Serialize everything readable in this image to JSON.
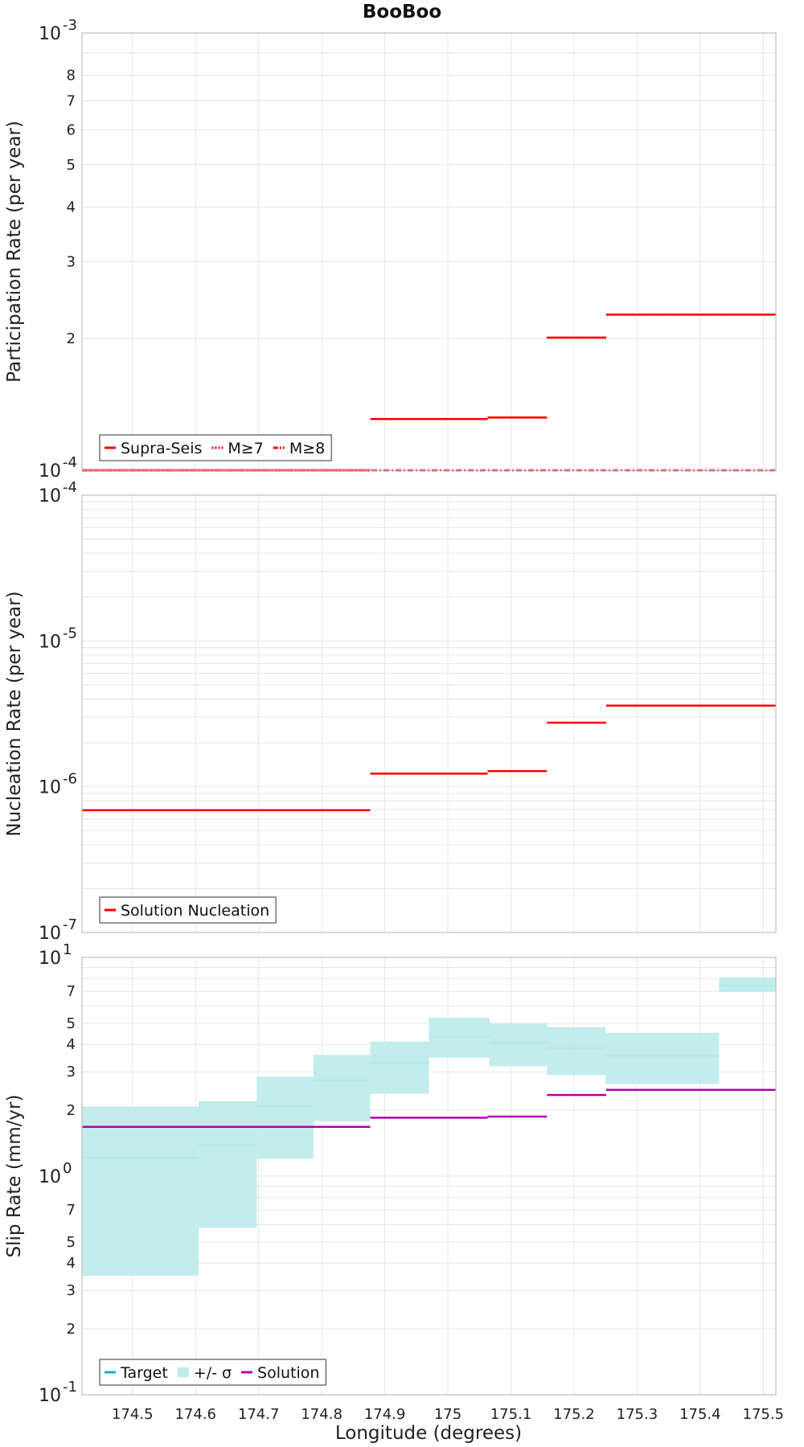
{
  "title": "BooBoo",
  "chart_data": [
    {
      "type": "line",
      "name": "participation",
      "ylabel": "Participation Rate (per year)",
      "xlabel": "",
      "xlim": [
        174.42,
        175.52
      ],
      "ylim": [
        0.0001,
        0.001
      ],
      "yscale": "log",
      "grid": true,
      "legend_position": "bottom-left",
      "series": [
        {
          "name": "Supra-Seis",
          "color": "#ff0000",
          "style": "solid",
          "segments": [
            {
              "x": [
                174.42,
                174.877
              ],
              "y": 0.0001
            },
            {
              "x": [
                174.877,
                175.063
              ],
              "y": 0.000131
            },
            {
              "x": [
                175.063,
                175.157
              ],
              "y": 0.000132
            },
            {
              "x": [
                175.157,
                175.251
              ],
              "y": 0.000201
            },
            {
              "x": [
                175.251,
                175.52
              ],
              "y": 0.000227
            }
          ]
        },
        {
          "name": "M≥7",
          "color": "#ff0000",
          "style": "dotted",
          "segments": [
            {
              "x": [
                174.42,
                174.877
              ],
              "y": 0.0001
            },
            {
              "x": [
                174.877,
                175.063
              ],
              "y": 0.000131
            },
            {
              "x": [
                175.063,
                175.157
              ],
              "y": 0.000132
            },
            {
              "x": [
                175.157,
                175.251
              ],
              "y": 0.000201
            },
            {
              "x": [
                175.251,
                175.52
              ],
              "y": 0.000227
            }
          ]
        },
        {
          "name": "M≥8",
          "color": "#ff0000",
          "style": "dashdot",
          "segments": [
            {
              "x": [
                174.42,
                175.52
              ],
              "y": 0.0001
            }
          ]
        }
      ]
    },
    {
      "type": "line",
      "name": "nucleation",
      "ylabel": "Nucleation Rate (per year)",
      "xlabel": "",
      "xlim": [
        174.42,
        175.52
      ],
      "ylim": [
        1e-07,
        0.0001
      ],
      "yscale": "log",
      "grid": true,
      "legend_position": "bottom-left",
      "series": [
        {
          "name": "Solution Nucleation",
          "color": "#ff0000",
          "style": "solid",
          "segments": [
            {
              "x": [
                174.42,
                174.877
              ],
              "y": 6.9e-07
            },
            {
              "x": [
                174.877,
                175.063
              ],
              "y": 1.23e-06
            },
            {
              "x": [
                175.063,
                175.157
              ],
              "y": 1.28e-06
            },
            {
              "x": [
                175.157,
                175.251
              ],
              "y": 2.75e-06
            },
            {
              "x": [
                175.251,
                175.52
              ],
              "y": 3.6e-06
            }
          ]
        }
      ]
    },
    {
      "type": "line",
      "name": "slip",
      "ylabel": "Slip Rate (mm/yr)",
      "xlabel": "Longitude (degrees)",
      "xlim": [
        174.42,
        175.52
      ],
      "ylim": [
        0.1,
        10
      ],
      "yscale": "log",
      "grid": true,
      "legend_position": "bottom-left",
      "series": [
        {
          "name": "Target",
          "color": "#16b3b0",
          "style": "solid",
          "segments": [
            {
              "x": [
                174.42,
                174.605
              ],
              "y": 1.21
            },
            {
              "x": [
                174.605,
                174.697
              ],
              "y": 1.39
            },
            {
              "x": [
                174.697,
                174.787
              ],
              "y": 2.08
            },
            {
              "x": [
                174.787,
                174.877
              ],
              "y": 2.74
            },
            {
              "x": [
                174.877,
                174.97
              ],
              "y": 3.3
            },
            {
              "x": [
                174.97,
                175.066
              ],
              "y": 4.35
            },
            {
              "x": [
                175.066,
                175.157
              ],
              "y": 4.08
            },
            {
              "x": [
                175.157,
                175.25
              ],
              "y": 3.85
            },
            {
              "x": [
                175.25,
                175.43
              ],
              "y": 3.55
            },
            {
              "x": [
                175.43,
                175.52
              ],
              "y": 7.45
            }
          ]
        },
        {
          "name": "+/- σ",
          "color": "#bfeceb",
          "style": "band",
          "bands": [
            {
              "x": [
                174.42,
                174.605
              ],
              "low": 0.35,
              "high": 2.08
            },
            {
              "x": [
                174.605,
                174.697
              ],
              "low": 0.58,
              "high": 2.2
            },
            {
              "x": [
                174.697,
                174.787
              ],
              "low": 1.2,
              "high": 2.85
            },
            {
              "x": [
                174.787,
                174.877
              ],
              "low": 1.78,
              "high": 3.58
            },
            {
              "x": [
                174.877,
                174.97
              ],
              "low": 2.38,
              "high": 4.12
            },
            {
              "x": [
                174.97,
                175.066
              ],
              "low": 3.48,
              "high": 5.3
            },
            {
              "x": [
                175.066,
                175.157
              ],
              "low": 3.18,
              "high": 4.98
            },
            {
              "x": [
                175.157,
                175.25
              ],
              "low": 2.9,
              "high": 4.8
            },
            {
              "x": [
                175.25,
                175.43
              ],
              "low": 2.64,
              "high": 4.52
            },
            {
              "x": [
                175.43,
                175.52
              ],
              "low": 6.95,
              "high": 8.1
            }
          ]
        },
        {
          "name": "Solution",
          "color": "#b000b0",
          "style": "solid",
          "segments": [
            {
              "x": [
                174.42,
                174.877
              ],
              "y": 1.68
            },
            {
              "x": [
                174.877,
                175.063
              ],
              "y": 1.85
            },
            {
              "x": [
                175.063,
                175.157
              ],
              "y": 1.87
            },
            {
              "x": [
                175.157,
                175.251
              ],
              "y": 2.35
            },
            {
              "x": [
                175.251,
                175.52
              ],
              "y": 2.48
            }
          ]
        }
      ]
    }
  ],
  "x_ticks": [
    "174.5",
    "174.6",
    "174.7",
    "174.8",
    "174.9",
    "175",
    "175.1",
    "175.2",
    "175.3",
    "175.4",
    "175.5"
  ],
  "decade_labels": {
    "participation": [
      {
        "base": "10",
        "exp": "-3"
      },
      {
        "base": "10",
        "exp": "-4"
      }
    ],
    "nucleation": [
      {
        "base": "10",
        "exp": "-4"
      },
      {
        "base": "10",
        "exp": "-5"
      },
      {
        "base": "10",
        "exp": "-6"
      },
      {
        "base": "10",
        "exp": "-7"
      }
    ],
    "slip": [
      {
        "base": "10",
        "exp": "1"
      },
      {
        "base": "10",
        "exp": "0"
      },
      {
        "base": "10",
        "exp": "-1"
      }
    ]
  },
  "minor_tick_labels": {
    "participation": [
      "8",
      "7",
      "6",
      "5",
      "4",
      "3",
      "2"
    ],
    "slip": [
      "7",
      "5",
      "4",
      "3",
      "2",
      "7",
      "5",
      "4",
      "3",
      "2"
    ]
  }
}
